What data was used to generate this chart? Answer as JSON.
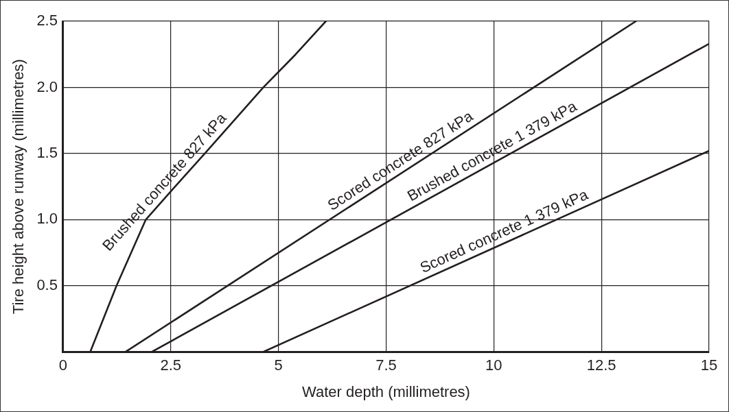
{
  "chart_data": {
    "type": "line",
    "xlabel": "Water depth (millimetres)",
    "ylabel": "Tire height above runway (millimetres)",
    "xlim": [
      0,
      15
    ],
    "ylim": [
      0,
      2.5
    ],
    "xticks": [
      0,
      2.5,
      5,
      7.5,
      10,
      12.5,
      15
    ],
    "yticks": [
      {
        "value": 0.5,
        "label": "0.5"
      },
      {
        "value": 1,
        "label": "1.0"
      },
      {
        "value": 1.5,
        "label": "1.5"
      },
      {
        "value": 2,
        "label": "2.0"
      },
      {
        "value": 2.5,
        "label": "2.5"
      }
    ],
    "series": [
      {
        "name": "Brushed concrete 827 kPa",
        "color": "#231f20",
        "x": [
          0.63,
          1.24,
          1.92,
          2.6,
          3.29,
          3.97,
          4.65,
          5.4,
          6.1
        ],
        "values": [
          0,
          0.5,
          1,
          1.25,
          1.5,
          1.75,
          2,
          2.25,
          2.5
        ]
      },
      {
        "name": "Scored concrete 827 kPa",
        "color": "#231f20",
        "x": [
          1.45,
          13.3
        ],
        "values": [
          0,
          2.5
        ]
      },
      {
        "name": "Brushed concrete 1 379 kPa",
        "color": "#231f20",
        "x": [
          2.06,
          15
        ],
        "values": [
          0,
          2.33
        ]
      },
      {
        "name": "Scored concrete 1 379 kPa",
        "color": "#231f20",
        "x": [
          4.65,
          15
        ],
        "values": [
          0,
          1.52
        ]
      }
    ],
    "grid": true,
    "legend": false,
    "marker": "none",
    "line_style": "solid"
  }
}
